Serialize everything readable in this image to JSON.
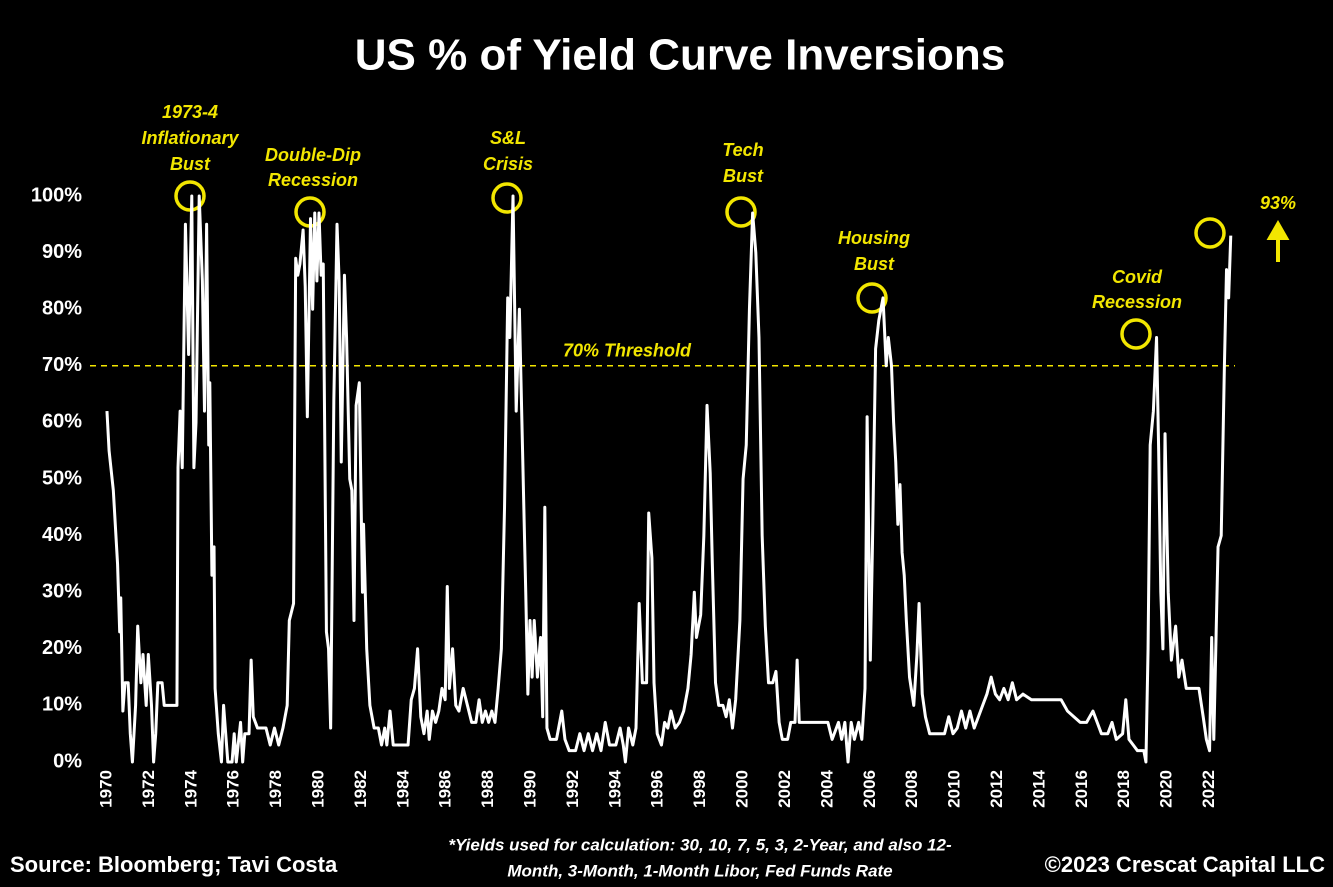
{
  "chart_data": {
    "type": "line",
    "title": "US % of Yield Curve Inversions",
    "color": "#ffffff",
    "x": [
      1970.0,
      1970.1,
      1970.3,
      1970.5,
      1970.6,
      1970.65,
      1970.75,
      1970.85,
      1971.0,
      1971.1,
      1971.2,
      1971.35,
      1971.45,
      1971.6,
      1971.7,
      1971.85,
      1971.95,
      1972.1,
      1972.2,
      1972.3,
      1972.4,
      1972.6,
      1972.7,
      1973.0,
      1973.3,
      1973.35,
      1973.45,
      1973.55,
      1973.7,
      1973.85,
      1974.0,
      1974.1,
      1974.2,
      1974.35,
      1974.5,
      1974.6,
      1974.7,
      1974.8,
      1974.85,
      1974.95,
      1975.05,
      1975.1,
      1975.25,
      1975.4,
      1975.5,
      1975.6,
      1975.7,
      1975.9,
      1976.0,
      1976.1,
      1976.3,
      1976.4,
      1976.5,
      1976.7,
      1976.8,
      1976.9,
      1977.1,
      1977.5,
      1977.7,
      1977.9,
      1978.1,
      1978.3,
      1978.5,
      1978.6,
      1978.8,
      1978.9,
      1979.0,
      1979.1,
      1979.25,
      1979.35,
      1979.45,
      1979.6,
      1979.7,
      1979.8,
      1979.9,
      1980.0,
      1980.1,
      1980.2,
      1980.35,
      1980.45,
      1980.55,
      1980.7,
      1980.85,
      1980.95,
      1981.05,
      1981.2,
      1981.3,
      1981.45,
      1981.55,
      1981.65,
      1981.75,
      1981.9,
      1982.05,
      1982.1,
      1982.25,
      1982.4,
      1982.6,
      1982.8,
      1982.95,
      1983.1,
      1983.2,
      1983.35,
      1983.5,
      1983.7,
      1984.0,
      1984.2,
      1984.35,
      1984.5,
      1984.65,
      1984.8,
      1984.95,
      1985.1,
      1985.2,
      1985.35,
      1985.5,
      1985.65,
      1985.8,
      1985.95,
      1986.05,
      1986.15,
      1986.3,
      1986.45,
      1986.6,
      1986.8,
      1987.0,
      1987.2,
      1987.4,
      1987.55,
      1987.7,
      1987.85,
      1988.0,
      1988.15,
      1988.3,
      1988.45,
      1988.6,
      1988.75,
      1988.9,
      1989.0,
      1989.15,
      1989.3,
      1989.45,
      1989.6,
      1989.75,
      1989.85,
      1989.95,
      1990.05,
      1990.15,
      1990.3,
      1990.45,
      1990.55,
      1990.65,
      1990.75,
      1990.9,
      1991.2,
      1991.45,
      1991.6,
      1991.8,
      1992.1,
      1992.3,
      1992.5,
      1992.7,
      1992.9,
      1993.1,
      1993.3,
      1993.5,
      1993.7,
      1994.0,
      1994.2,
      1994.35,
      1994.45,
      1994.6,
      1994.8,
      1994.95,
      1995.1,
      1995.25,
      1995.45,
      1995.55,
      1995.7,
      1995.8,
      1995.95,
      1996.15,
      1996.3,
      1996.45,
      1996.6,
      1996.8,
      1997.0,
      1997.2,
      1997.4,
      1997.55,
      1997.7,
      1997.8,
      1998.0,
      1998.15,
      1998.3,
      1998.45,
      1998.55,
      1998.7,
      1998.85,
      1999.05,
      1999.2,
      1999.35,
      1999.5,
      1999.65,
      1999.85,
      2000.0,
      2000.15,
      2000.3,
      2000.45,
      2000.6,
      2000.75,
      2000.9,
      2001.05,
      2001.2,
      2001.4,
      2001.55,
      2001.7,
      2001.85,
      2002.1,
      2002.25,
      2002.45,
      2002.55,
      2002.65,
      2003.0,
      2003.5,
      2004.0,
      2004.2,
      2004.5,
      2004.65,
      2004.8,
      2004.95,
      2005.1,
      2005.25,
      2005.45,
      2005.6,
      2005.75,
      2005.85,
      2006.0,
      2006.1,
      2006.25,
      2006.4,
      2006.6,
      2006.75,
      2006.85,
      2007.0,
      2007.1,
      2007.2,
      2007.3,
      2007.4,
      2007.5,
      2007.6,
      2007.7,
      2007.85,
      2008.05,
      2008.2,
      2008.3,
      2008.45,
      2008.6,
      2008.8,
      2009.2,
      2009.5,
      2009.7,
      2009.9,
      2010.1,
      2010.3,
      2010.5,
      2010.7,
      2010.9,
      2011.1,
      2011.3,
      2011.5,
      2011.7,
      2011.9,
      2012.1,
      2012.3,
      2012.5,
      2012.7,
      2012.9,
      2013.2,
      2013.6,
      2014.0,
      2014.5,
      2015.0,
      2015.3,
      2015.6,
      2015.9,
      2016.2,
      2016.5,
      2016.7,
      2016.9,
      2017.2,
      2017.4,
      2017.6,
      2017.9,
      2018.05,
      2018.2,
      2018.4,
      2018.6,
      2018.9,
      2019.0,
      2019.1,
      2019.2,
      2019.35,
      2019.5,
      2019.6,
      2019.7,
      2019.8,
      2019.9,
      2020.05,
      2020.2,
      2020.4,
      2020.55,
      2020.7,
      2020.9,
      2021.2,
      2021.5,
      2021.7,
      2021.85,
      2022.0,
      2022.1,
      2022.2,
      2022.4,
      2022.55,
      2022.7,
      2022.8,
      2022.9,
      2023.0
    ],
    "values": [
      62,
      55,
      48,
      35,
      23,
      29,
      9,
      14,
      14,
      5,
      0,
      10,
      24,
      14,
      19,
      10,
      19,
      10,
      0,
      5,
      14,
      14,
      10,
      10,
      10,
      52,
      62,
      52,
      95,
      72,
      100,
      52,
      60,
      100,
      85,
      62,
      95,
      56,
      67,
      33,
      38,
      13,
      5,
      0,
      10,
      5,
      0,
      0,
      5,
      0,
      7,
      0,
      5,
      5,
      18,
      8,
      6,
      6,
      3,
      6,
      3,
      6,
      10,
      25,
      28,
      89,
      86,
      88,
      94,
      84,
      61,
      96,
      80,
      97,
      85,
      97,
      86,
      88,
      23,
      20,
      6,
      64,
      95,
      85,
      53,
      86,
      75,
      50,
      48,
      25,
      63,
      67,
      30,
      42,
      20,
      10,
      6,
      6,
      3,
      6,
      3,
      9,
      3,
      3,
      3,
      3,
      11,
      13,
      20,
      8,
      5,
      9,
      4,
      9,
      7,
      9,
      13,
      11,
      31,
      13,
      20,
      10,
      9,
      13,
      10,
      7,
      7,
      11,
      7,
      9,
      7,
      9,
      7,
      13,
      20,
      45,
      82,
      75,
      100,
      62,
      80,
      55,
      30,
      12,
      25,
      15,
      25,
      15,
      22,
      8,
      45,
      6,
      4,
      4,
      9,
      4,
      2,
      2,
      5,
      2,
      5,
      2,
      5,
      2,
      7,
      3,
      3,
      6,
      3,
      0,
      6,
      3,
      6,
      28,
      14,
      14,
      44,
      36,
      14,
      5,
      3,
      7,
      6,
      9,
      6,
      7,
      9,
      13,
      19,
      30,
      22,
      26,
      40,
      63,
      51,
      35,
      14,
      10,
      10,
      8,
      11,
      6,
      11,
      25,
      50,
      56,
      80,
      97,
      90,
      75,
      40,
      24,
      14,
      14,
      16,
      7,
      4,
      4,
      7,
      7,
      18,
      7,
      7,
      7,
      7,
      4,
      7,
      4,
      7,
      0,
      7,
      4,
      7,
      4,
      13,
      61,
      18,
      38,
      73,
      78,
      82,
      70,
      75,
      70,
      60,
      53,
      42,
      49,
      37,
      33,
      25,
      15,
      10,
      19,
      28,
      12,
      8,
      5,
      5,
      5,
      8,
      5,
      6,
      9,
      6,
      9,
      6,
      8,
      10,
      12,
      15,
      12,
      11,
      13,
      11,
      14,
      11,
      12,
      11,
      11,
      11,
      11,
      9,
      8,
      7,
      7,
      9,
      7,
      5,
      5,
      7,
      4,
      5,
      11,
      4,
      3,
      2,
      2,
      0,
      20,
      56,
      62,
      75,
      55,
      30,
      20,
      58,
      30,
      18,
      24,
      15,
      18,
      13,
      13,
      13,
      8,
      4,
      2,
      22,
      4,
      38,
      40,
      70,
      87,
      82,
      93
    ],
    "xlim": [
      1969.2,
      2023.2
    ],
    "ylim": [
      0,
      100
    ],
    "xticks": [
      1970,
      1972,
      1974,
      1976,
      1978,
      1980,
      1982,
      1984,
      1986,
      1988,
      1990,
      1992,
      1994,
      1996,
      1998,
      2000,
      2002,
      2004,
      2006,
      2008,
      2010,
      2012,
      2014,
      2016,
      2018,
      2020,
      2022
    ],
    "yticks": [
      {
        "value": 0,
        "label": "0%"
      },
      {
        "value": 10,
        "label": "10%"
      },
      {
        "value": 20,
        "label": "20%"
      },
      {
        "value": 30,
        "label": "30%"
      },
      {
        "value": 40,
        "label": "40%"
      },
      {
        "value": 50,
        "label": "50%"
      },
      {
        "value": 60,
        "label": "60%"
      },
      {
        "value": 70,
        "label": "70%"
      },
      {
        "value": 80,
        "label": "80%"
      },
      {
        "value": 90,
        "label": "90%"
      },
      {
        "value": 100,
        "label": "100%"
      }
    ],
    "grid": false,
    "threshold": {
      "value": 70,
      "label": "70% Threshold",
      "color": "#f2e600"
    },
    "annotations": [
      [
        "1973-4",
        "Inflationary",
        "Bust"
      ],
      [
        "Double-Dip",
        "Recession"
      ],
      [
        "S&L",
        "Crisis"
      ],
      [
        "Tech",
        "Bust"
      ],
      [
        "Housing",
        "Bust"
      ],
      [
        "Covid",
        "Recession"
      ]
    ],
    "latest_label": "93%",
    "footnote": [
      "*Yields used for calculation: 30, 10, 7, 5, 3, 2-Year, and also 12-",
      "Month, 3-Month, 1-Month Libor, Fed Funds Rate"
    ],
    "source": "Source: Bloomberg; Tavi Costa",
    "copyright": "©2023 Crescat Capital LLC"
  }
}
